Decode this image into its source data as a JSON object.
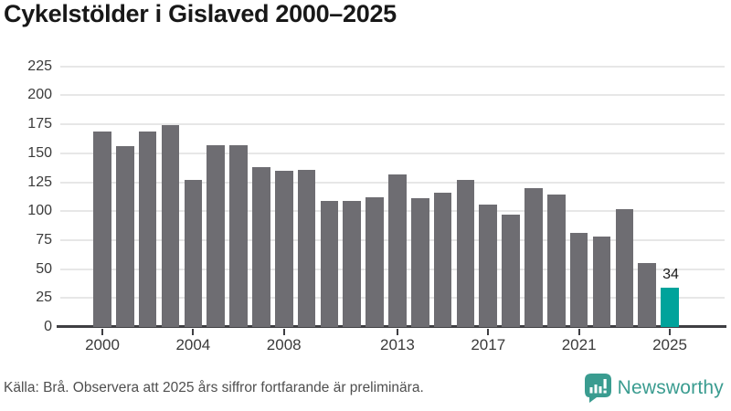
{
  "title": "Cykelstölder i Gislaved 2000–2025",
  "chart_data": {
    "type": "bar",
    "title": "Cykelstölder i Gislaved 2000–2025",
    "categories": [
      2000,
      2001,
      2002,
      2003,
      2004,
      2005,
      2006,
      2007,
      2008,
      2009,
      2010,
      2011,
      2012,
      2013,
      2014,
      2015,
      2016,
      2017,
      2018,
      2019,
      2020,
      2021,
      2022,
      2023,
      2024,
      2025
    ],
    "values": [
      169,
      156,
      169,
      174,
      127,
      157,
      157,
      138,
      135,
      136,
      109,
      109,
      112,
      132,
      111,
      116,
      127,
      106,
      97,
      120,
      114,
      81,
      78,
      102,
      55,
      34
    ],
    "y_ticks": [
      0,
      25,
      50,
      75,
      100,
      125,
      150,
      175,
      200,
      225
    ],
    "ylim": [
      0,
      235
    ],
    "x_tick_labels": [
      "2000",
      "2004",
      "2008",
      "2013",
      "2017",
      "2021",
      "2025"
    ],
    "x_tick_indices": [
      0,
      4,
      8,
      13,
      17,
      21,
      25
    ],
    "grid": "horizontal",
    "legend": "none",
    "bar_color": "#6e6d72",
    "highlight_index": 25,
    "highlight_color": "#00a39b",
    "grid_color": "#e7e7e7",
    "axis_color": "#3e3e42",
    "annotation": {
      "index": 25,
      "text": "34"
    }
  },
  "footer": {
    "source": "Källa: Brå. Observera att 2025 års siffror fortfarande är preliminära."
  },
  "logo": {
    "text": "Newsworthy",
    "icon": "newsworthy-bars-icon",
    "color": "#3a9c90"
  }
}
